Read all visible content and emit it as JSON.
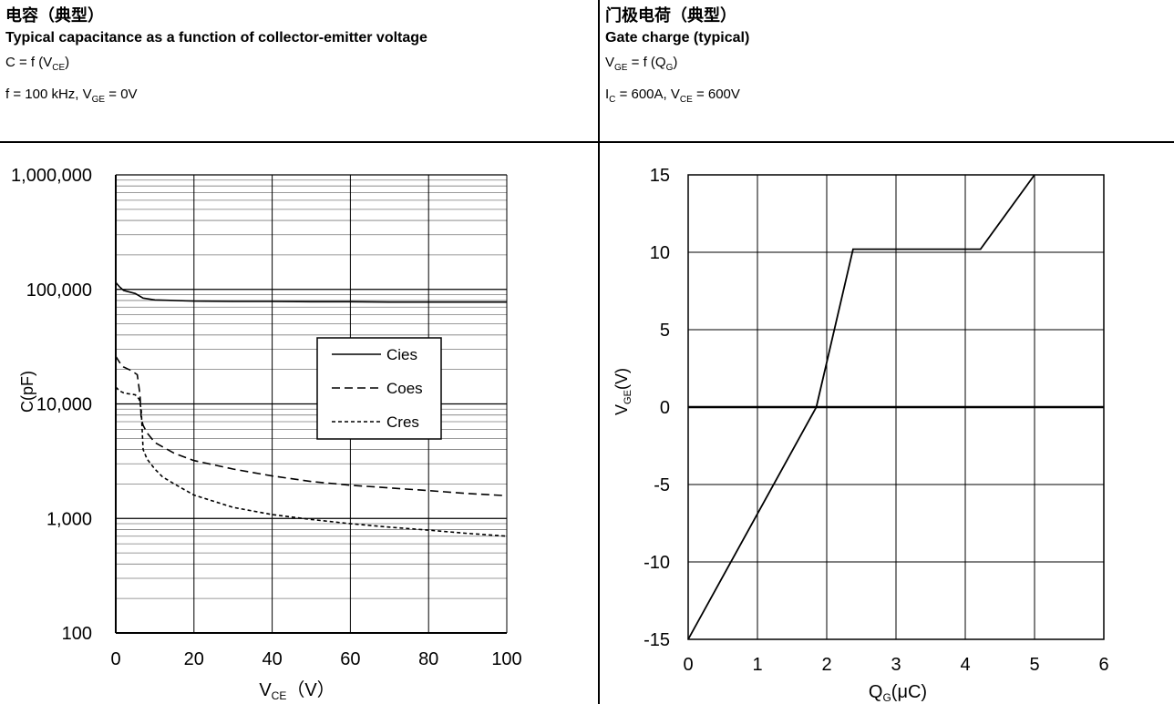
{
  "left_header": {
    "title_cn": "电容（典型）",
    "title_en": "Typical capacitance as a function of collector-emitter voltage",
    "func_main": "C = f (V",
    "func_sub": "CE",
    "func_end": ")",
    "cond_a": "f = 100 kHz, V",
    "cond_sub": "GE",
    "cond_b": " = 0V"
  },
  "right_header": {
    "title_cn": "门极电荷（典型）",
    "title_en": "Gate charge (typical)",
    "func_v": "V",
    "func_v_sub": "GE",
    "func_mid": " = f (Q",
    "func_q_sub": "G",
    "func_end": ")",
    "cond_i": "I",
    "cond_i_sub": "C",
    "cond_mid": " = 600A, V",
    "cond_v_sub": "CE",
    "cond_end": " = 600V"
  },
  "chart_data": [
    {
      "type": "line",
      "yscale": "log",
      "xlim": [
        0,
        100
      ],
      "ylim": [
        100,
        1000000
      ],
      "xticks": [
        0,
        20,
        40,
        60,
        80,
        100
      ],
      "yticks": [
        100,
        1000,
        10000,
        100000,
        1000000
      ],
      "ytick_labels": [
        "100",
        "1,000",
        "10,000",
        "100,000",
        "1,000,000"
      ],
      "xlabel_main": "V",
      "xlabel_sub": "CE",
      "xlabel_end": "（V）",
      "ylabel": "C(pF)",
      "legend_position": "center-right",
      "grid": true,
      "series": [
        {
          "name": "Cies",
          "style": "solid",
          "x": [
            0,
            1,
            2,
            5,
            7,
            10,
            15,
            20,
            30,
            40,
            50,
            60,
            70,
            80,
            90,
            100
          ],
          "y": [
            115000,
            105000,
            98000,
            92000,
            84000,
            81000,
            80000,
            79000,
            78500,
            78500,
            78000,
            78000,
            77500,
            77500,
            77500,
            77500
          ]
        },
        {
          "name": "Coes",
          "style": "dashed",
          "x": [
            0,
            1,
            2,
            4,
            5.5,
            6.2,
            6.5,
            7,
            8,
            10,
            15,
            20,
            30,
            40,
            50,
            60,
            70,
            80,
            90,
            100
          ],
          "y": [
            26000,
            23000,
            21000,
            19500,
            18000,
            12000,
            7500,
            6500,
            5600,
            4600,
            3700,
            3200,
            2700,
            2350,
            2100,
            1950,
            1850,
            1750,
            1650,
            1580
          ]
        },
        {
          "name": "Cres",
          "style": "dotted",
          "x": [
            0,
            1,
            2,
            3,
            5,
            6,
            6.5,
            7,
            8,
            10,
            12,
            15,
            20,
            30,
            40,
            50,
            60,
            70,
            80,
            90,
            100
          ],
          "y": [
            14000,
            13000,
            12500,
            12300,
            12000,
            11000,
            9000,
            4000,
            3300,
            2700,
            2300,
            2000,
            1600,
            1250,
            1080,
            980,
            900,
            840,
            790,
            740,
            700
          ]
        }
      ]
    },
    {
      "type": "line",
      "xlim": [
        0,
        6
      ],
      "ylim": [
        -15,
        15
      ],
      "xticks": [
        0,
        1,
        2,
        3,
        4,
        5,
        6
      ],
      "yticks": [
        -15,
        -10,
        -5,
        0,
        5,
        10,
        15
      ],
      "xlabel_main": "Q",
      "xlabel_sub": "G",
      "xlabel_end": "(μC)",
      "ylabel_main": "V",
      "ylabel_sub": "GE",
      "ylabel_end": "(V)",
      "grid": true,
      "series": [
        {
          "style": "solid",
          "x": [
            0,
            1.85,
            2.38,
            4.22,
            5.0
          ],
          "y": [
            -15,
            0,
            10.2,
            10.2,
            15
          ]
        }
      ]
    }
  ]
}
